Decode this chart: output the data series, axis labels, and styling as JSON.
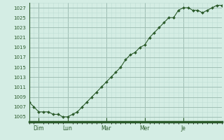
{
  "y_values": [
    1008,
    1007,
    1006,
    1006,
    1006,
    1005.5,
    1005.5,
    1005,
    1005,
    1005.5,
    1006,
    1007,
    1008,
    1009,
    1010,
    1011,
    1012,
    1013,
    1014,
    1015,
    1016.5,
    1017.5,
    1018,
    1019,
    1019.5,
    1021,
    1022,
    1023,
    1024,
    1025,
    1025,
    1026.5,
    1027,
    1027,
    1026.5,
    1026.5,
    1026,
    1026.5,
    1027,
    1027.5,
    1027.5
  ],
  "x_tick_positions": [
    2,
    8,
    16,
    24,
    32
  ],
  "x_tick_labels": [
    "Dim",
    "Lun",
    "Mar",
    "Mer",
    "Je"
  ],
  "ytick_min": 1005,
  "ytick_max": 1027,
  "ytick_step": 2,
  "y_min": 1004,
  "y_max": 1028,
  "bg_color": "#d4ede4",
  "grid_color_major": "#a0bfb5",
  "grid_color_minor": "#c0ddd5",
  "line_color": "#2a5a2a",
  "marker_color": "#2a5a2a",
  "axis_color": "#2a5a2a",
  "tick_color": "#2a5a2a",
  "bottom_spine_color": "#2a5a2a",
  "bottom_spine_width": 2.5
}
